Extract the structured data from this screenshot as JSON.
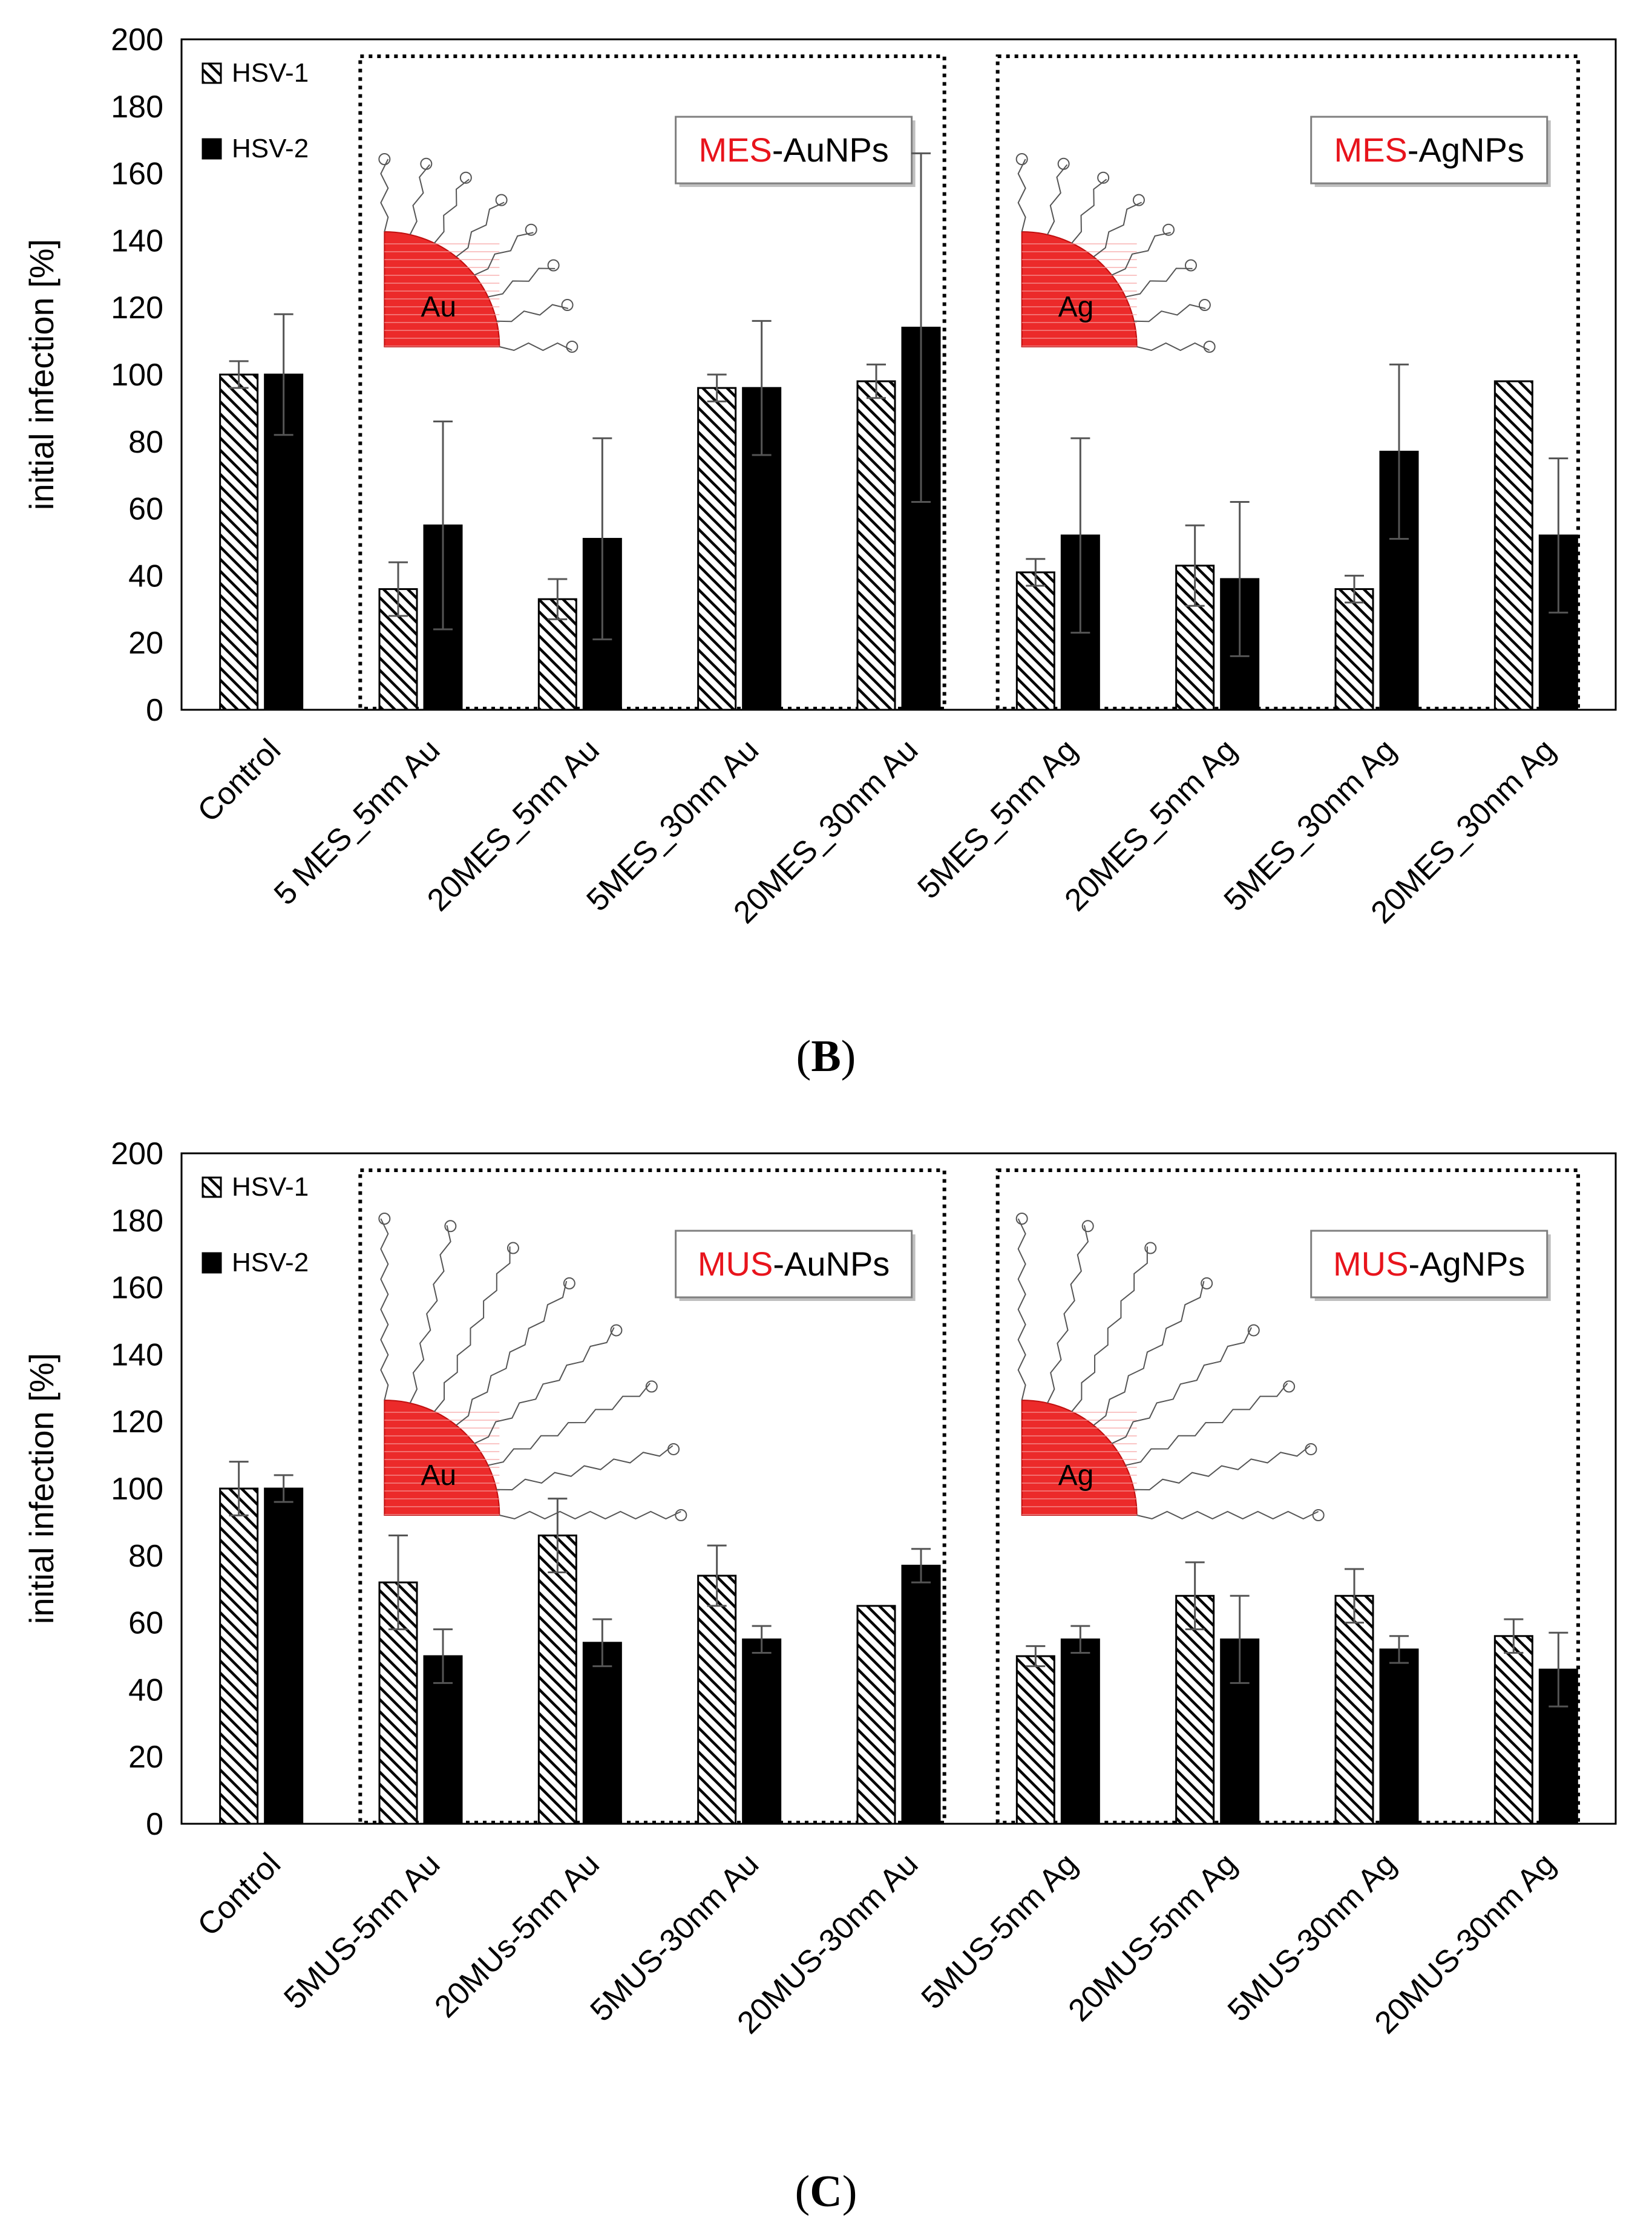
{
  "chart_data": [
    {
      "panel": "B",
      "type": "bar",
      "caption_letter": "B",
      "ylabel": "initial infection [%]",
      "ylim": [
        0,
        200
      ],
      "yticks": [
        0,
        20,
        40,
        60,
        80,
        100,
        120,
        140,
        160,
        180,
        200
      ],
      "categories": [
        "Control",
        "5 MES_5nm Au",
        "20MES_5nm Au",
        "5MES_30nm Au",
        "20MES_30nm Au",
        "5MES_5nm Ag",
        "20MES_5nm Ag",
        "5MES_30nm Ag",
        "20MES_30nm Ag"
      ],
      "legend": [
        "HSV-1",
        "HSV-2"
      ],
      "series": [
        {
          "name": "HSV-1",
          "values": [
            100,
            36,
            33,
            96,
            98,
            41,
            43,
            36,
            98
          ],
          "errors": [
            4,
            8,
            6,
            4,
            5,
            4,
            12,
            4,
            0
          ]
        },
        {
          "name": "HSV-2",
          "values": [
            100,
            55,
            51,
            96,
            114,
            52,
            39,
            77,
            52
          ],
          "errors": [
            18,
            31,
            30,
            20,
            52,
            29,
            23,
            26,
            23
          ]
        }
      ],
      "groups": [
        {
          "prefix": "MES",
          "suffix": "-AuNPs",
          "core": "Au",
          "from": 1,
          "to": 4
        },
        {
          "prefix": "MES",
          "suffix": "-AgNPs",
          "core": "Ag",
          "from": 5,
          "to": 8
        }
      ],
      "ligand": "short"
    },
    {
      "panel": "C",
      "type": "bar",
      "caption_letter": "C",
      "ylabel": "initial infection [%]",
      "ylim": [
        0,
        200
      ],
      "yticks": [
        0,
        20,
        40,
        60,
        80,
        100,
        120,
        140,
        160,
        180,
        200
      ],
      "categories": [
        "Control",
        "5MUS-5nm Au",
        "20MUs-5nm Au",
        "5MUS-30nm Au",
        "20MUS-30nm Au",
        "5MUS-5nm Ag",
        "20MUS-5nm Ag",
        "5MUS-30nm Ag",
        "20MUS-30nm Ag"
      ],
      "legend": [
        "HSV-1",
        "HSV-2"
      ],
      "series": [
        {
          "name": "HSV-1",
          "values": [
            100,
            72,
            86,
            74,
            65,
            50,
            68,
            68,
            56
          ],
          "errors": [
            8,
            14,
            11,
            9,
            0,
            3,
            10,
            8,
            5
          ]
        },
        {
          "name": "HSV-2",
          "values": [
            100,
            50,
            54,
            55,
            77,
            55,
            55,
            52,
            46
          ],
          "errors": [
            4,
            8,
            7,
            4,
            5,
            4,
            13,
            4,
            11
          ]
        }
      ],
      "groups": [
        {
          "prefix": "MUS",
          "suffix": "-AuNPs",
          "core": "Au",
          "from": 1,
          "to": 4
        },
        {
          "prefix": "MUS",
          "suffix": "-AgNPs",
          "core": "Ag",
          "from": 5,
          "to": 8
        }
      ],
      "ligand": "long"
    }
  ]
}
